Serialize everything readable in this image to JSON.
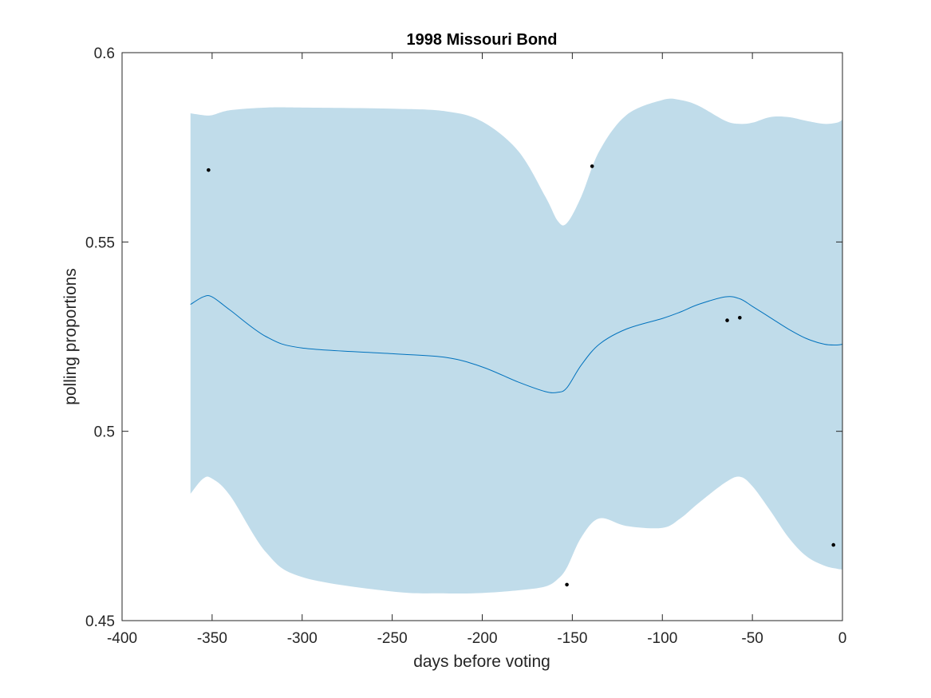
{
  "chart_data": {
    "type": "line",
    "title": "1998 Missouri Bond",
    "xlabel": "days before voting",
    "ylabel": "polling proportions",
    "xlim": [
      -400,
      0
    ],
    "ylim": [
      0.45,
      0.6
    ],
    "xticks": [
      -400,
      -350,
      -300,
      -250,
      -200,
      -150,
      -100,
      -50,
      0
    ],
    "xtick_labels": [
      "-400",
      "-350",
      "-300",
      "-250",
      "-200",
      "-150",
      "-100",
      "-50",
      "0"
    ],
    "yticks": [
      0.45,
      0.5,
      0.55,
      0.6
    ],
    "ytick_labels": [
      "0.45",
      "0.5",
      "0.55",
      "0.6"
    ],
    "grid": false,
    "colors": {
      "band": "#c0dcea",
      "mean": "#0072bd",
      "points": "#000000",
      "axes": "#262626"
    },
    "x": [
      -362,
      -355,
      -350,
      -340,
      -320,
      -300,
      -250,
      -220,
      -200,
      -180,
      -165,
      -158,
      -153,
      -145,
      -135,
      -120,
      -100,
      -90,
      -80,
      -65,
      -57,
      -50,
      -40,
      -30,
      -20,
      -10,
      -3,
      0
    ],
    "mean": [
      0.5335,
      0.5355,
      0.5355,
      0.532,
      0.525,
      0.522,
      0.5205,
      0.5195,
      0.517,
      0.513,
      0.5105,
      0.5103,
      0.5115,
      0.5175,
      0.523,
      0.527,
      0.5298,
      0.5315,
      0.5335,
      0.5355,
      0.535,
      0.533,
      0.53,
      0.527,
      0.5245,
      0.523,
      0.5228,
      0.523
    ],
    "upper": [
      0.584,
      0.5835,
      0.5835,
      0.5848,
      0.5855,
      0.5855,
      0.5852,
      0.5845,
      0.5818,
      0.574,
      0.562,
      0.5555,
      0.555,
      0.562,
      0.574,
      0.5835,
      0.5875,
      0.5875,
      0.586,
      0.582,
      0.5812,
      0.5815,
      0.583,
      0.583,
      0.582,
      0.5812,
      0.5815,
      0.5823
    ],
    "lower": [
      0.4835,
      0.4875,
      0.4875,
      0.483,
      0.468,
      0.4615,
      0.4577,
      0.4572,
      0.4573,
      0.458,
      0.459,
      0.461,
      0.464,
      0.472,
      0.477,
      0.475,
      0.4745,
      0.477,
      0.481,
      0.4865,
      0.488,
      0.4855,
      0.479,
      0.472,
      0.467,
      0.4645,
      0.4637,
      0.4635
    ],
    "points": [
      {
        "x": -352,
        "y": 0.569
      },
      {
        "x": -139,
        "y": 0.57
      },
      {
        "x": -153,
        "y": 0.4595
      },
      {
        "x": -64,
        "y": 0.5293
      },
      {
        "x": -57,
        "y": 0.53
      },
      {
        "x": -5,
        "y": 0.47
      }
    ]
  }
}
